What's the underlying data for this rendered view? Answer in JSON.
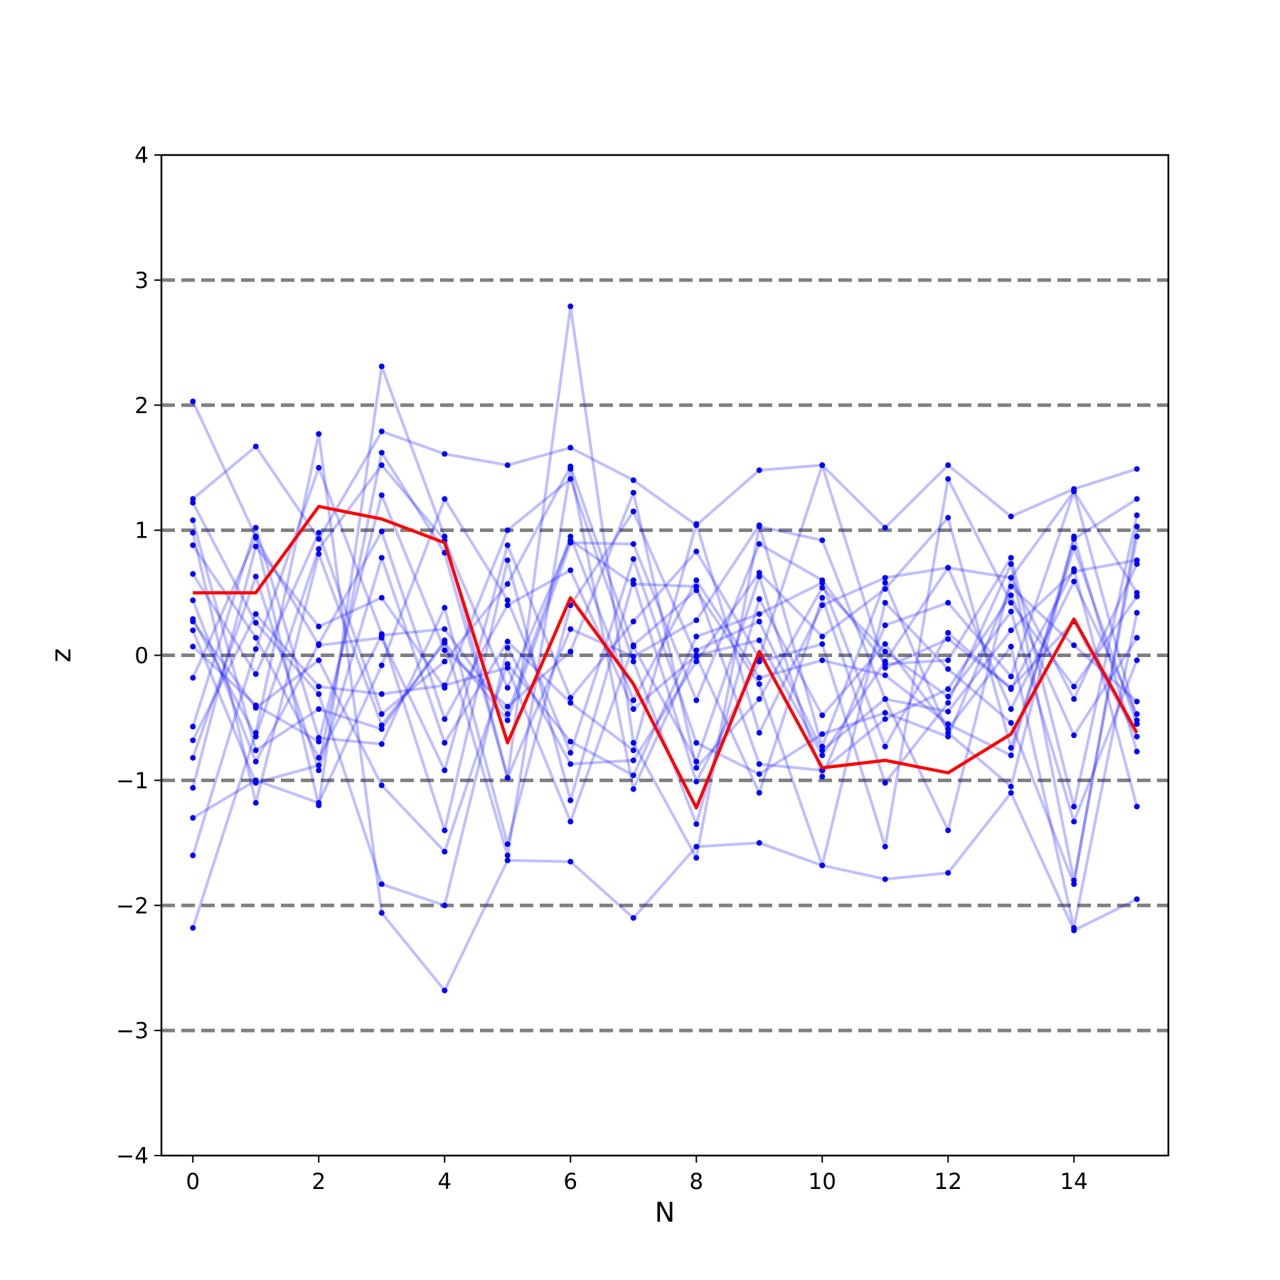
{
  "chart_data": {
    "type": "line",
    "title": "",
    "xlabel": "N",
    "ylabel": "z",
    "xlim": [
      -0.5,
      15.5
    ],
    "ylim": [
      -4,
      4
    ],
    "xticks": [
      0,
      2,
      4,
      6,
      8,
      10,
      12,
      14
    ],
    "yticks": [
      -4,
      -3,
      -2,
      -1,
      0,
      1,
      2,
      3,
      4
    ],
    "xtick_labels": [
      "0",
      "2",
      "4",
      "6",
      "8",
      "10",
      "12",
      "14"
    ],
    "ytick_labels": [
      "−4",
      "−3",
      "−2",
      "−1",
      "0",
      "1",
      "2",
      "3",
      "4"
    ],
    "reference_lines": [
      -3,
      -2,
      -1,
      0,
      1,
      2,
      3
    ],
    "reference_line_color": "#808080",
    "grid": false,
    "legend": "none",
    "x": [
      0,
      1,
      2,
      3,
      4,
      5,
      6,
      7,
      8,
      9,
      10,
      11,
      12,
      13,
      14,
      15
    ],
    "highlight_series": {
      "color": "#ff0000",
      "values": [
        0.5,
        0.5,
        1.19,
        1.09,
        0.9,
        -0.7,
        0.46,
        -0.23,
        -1.22,
        0.03,
        -0.9,
        -0.84,
        -0.94,
        -0.63,
        0.29,
        -0.62
      ]
    },
    "background_series_color": "#0000ff",
    "background_series": [
      [
        2.03,
        0.95,
        -1.2,
        2.31,
        0.95,
        -0.98,
        2.79,
        -0.7,
        -1.62,
        1.03,
        0.92,
        -0.35,
        -1.4,
        0.62,
        -0.35,
        0.73
      ],
      [
        1.25,
        1.67,
        0.93,
        1.79,
        1.61,
        1.52,
        1.66,
        1.4,
        1.04,
        1.48,
        1.52,
        1.02,
        1.52,
        1.11,
        1.33,
        1.49
      ],
      [
        -2.18,
        -0.62,
        1.77,
        -2.06,
        -2.68,
        -1.64,
        -1.65,
        -2.1,
        -1.53,
        -1.5,
        -1.68,
        -1.79,
        -1.74,
        -1.1,
        -2.2,
        -1.95
      ],
      [
        0.88,
        0.14,
        -0.82,
        0.16,
        0.21,
        -0.47,
        0.95,
        -0.36,
        0.6,
        -0.18,
        -0.04,
        -0.16,
        -0.55,
        -0.8,
        0.93,
        1.25
      ],
      [
        -1.3,
        -1.0,
        -1.18,
        -0.08,
        1.25,
        0.44,
        -0.78,
        0.77,
        -0.7,
        -0.95,
        -0.63,
        -0.46,
        -0.65,
        0.55,
        0.08,
        -0.37
      ],
      [
        0.65,
        -0.15,
        0.98,
        -0.47,
        -0.05,
        0.57,
        1.51,
        0.07,
        -0.85,
        0.63,
        -0.97,
        0.24,
        0.42,
        -0.17,
        1.31,
        -0.52
      ],
      [
        -0.57,
        1.02,
        -0.66,
        -0.71,
        0.38,
        -1.51,
        0.4,
        1.15,
        -0.01,
        -1.1,
        0.46,
        -1.02,
        -0.38,
        0.73,
        -1.8,
        0.95
      ],
      [
        0.27,
        -0.42,
        -0.04,
        -1.04,
        -1.57,
        -0.07,
        -0.69,
        -0.96,
        0.15,
        0.33,
        0.58,
        -0.73,
        0.18,
        -0.27,
        0.69,
        -1.21
      ],
      [
        -1.06,
        0.87,
        0.23,
        0.46,
        -0.26,
        1.0,
        1.41,
        -0.05,
        -1.35,
        0.45,
        -0.48,
        0.09,
        -0.59,
        0.07,
        -2.18,
        0.34
      ],
      [
        0.98,
        -1.18,
        0.81,
        -0.56,
        0.1,
        -0.52,
        0.9,
        0.89,
        -0.36,
        0.89,
        0.6,
        -0.07,
        -0.04,
        0.78,
        -1.21,
        1.12
      ],
      [
        -0.82,
        0.63,
        -0.92,
        0.78,
        -0.7,
        0.11,
        -0.38,
        -0.76,
        1.05,
        -0.62,
        0.4,
        0.62,
        0.7,
        -0.43,
        0.59,
        -0.47
      ],
      [
        0.29,
        -0.65,
        0.85,
        1.52,
        0.92,
        -0.26,
        0.92,
        0.57,
        0.55,
        -0.87,
        -0.92,
        -0.51,
        -0.27,
        0.48,
        -0.64,
        0.14
      ],
      [
        1.22,
        0.26,
        -0.31,
        -1.83,
        -2.0,
        0.06,
        -0.87,
        -0.84,
        -0.05,
        0.66,
        0.15,
        0.53,
        1.1,
        -0.74,
        0.86,
        -0.55
      ],
      [
        0.07,
        -0.4,
        -0.69,
        1.28,
        0.04,
        -0.41,
        0.03,
        1.3,
        -0.9,
        -0.35,
        0.54,
        0.03,
        -0.33,
        0.35,
        -1.33,
        -0.04
      ],
      [
        -0.18,
        0.94,
        0.08,
        0.14,
        -0.92,
        0.88,
        -0.34,
        0.27,
        0.83,
        -0.02,
        1.52,
        -0.1,
        0.13,
        -0.26,
        0.27,
        -0.65
      ],
      [
        1.08,
        -0.76,
        -0.43,
        -0.59,
        0.12,
        -1.6,
        1.49,
        -1.07,
        0.04,
        0.27,
        -0.76,
        -0.35,
        -0.45,
        0.2,
        0.67,
        0.76
      ],
      [
        -1.6,
        0.05,
        1.5,
        0.17,
        -1.4,
        0.76,
        -1.16,
        0.6,
        -1.01,
        -0.05,
        0.09,
        -1.53,
        1.41,
        0.42,
        -0.25,
        0.47
      ],
      [
        0.2,
        -1.02,
        -0.88,
        1.62,
        0.82,
        -0.98,
        0.21,
        -0.01,
        0.28,
        1.04,
        -0.73,
        0.58,
        -0.62,
        -1.05,
        0.95,
        -0.77
      ],
      [
        -0.68,
        0.33,
        -0.25,
        -0.31,
        -0.24,
        -0.1,
        -1.33,
        0.08,
        0.52,
        -0.23,
        -1.68,
        0.42,
        -0.11,
        -0.54,
        -1.83,
        1.03
      ],
      [
        0.44,
        -0.85,
        0.09,
        0.99,
        -0.51,
        0.4,
        0.68,
        -0.43,
        0.0,
        0.12,
        -0.8,
        -0.05,
        0.7,
        0.62,
        1.31,
        0.5
      ]
    ]
  }
}
